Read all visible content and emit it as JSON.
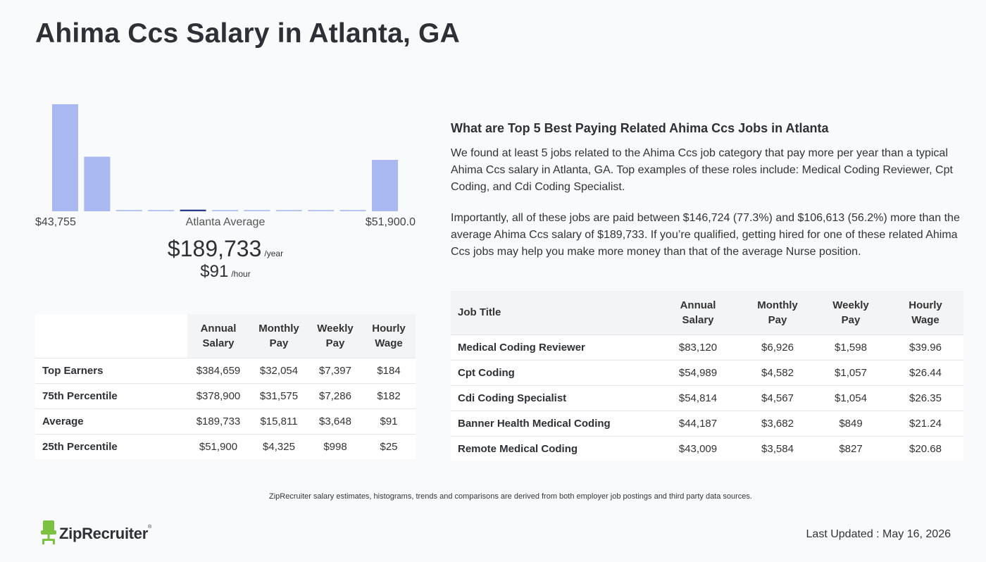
{
  "page": {
    "title": "Ahima Ccs Salary in Atlanta, GA"
  },
  "chart_data": {
    "type": "bar",
    "title": "",
    "xlabel": "",
    "ylabel": "",
    "min_label": "$43,755",
    "center_label": "Atlanta Average",
    "max_label": "$51,900.0",
    "values": [
      100,
      51,
      1,
      1,
      1.5,
      1,
      1,
      1,
      1,
      1,
      48
    ],
    "highlight_index": 4,
    "colors": {
      "bar": "#aab8f2",
      "highlight": "#2b3a8a",
      "flat": "#b8c4f0"
    }
  },
  "average": {
    "yearly": "$189,733",
    "yearly_unit": "/year",
    "hourly": "$91",
    "hourly_unit": "/hour"
  },
  "percentile_table": {
    "headers": [
      "Annual Salary",
      "Monthly Pay",
      "Weekly Pay",
      "Hourly Wage"
    ],
    "rows": [
      {
        "label": "Top Earners",
        "values": [
          "$384,659",
          "$32,054",
          "$7,397",
          "$184"
        ]
      },
      {
        "label": "75th Percentile",
        "values": [
          "$378,900",
          "$31,575",
          "$7,286",
          "$182"
        ]
      },
      {
        "label": "Average",
        "values": [
          "$189,733",
          "$15,811",
          "$3,648",
          "$91"
        ]
      },
      {
        "label": "25th Percentile",
        "values": [
          "$51,900",
          "$4,325",
          "$998",
          "$25"
        ]
      }
    ]
  },
  "related": {
    "heading": "What are Top 5 Best Paying Related Ahima Ccs Jobs in Atlanta",
    "para1": "We found at least 5 jobs related to the Ahima Ccs job category that pay more per year than a typical Ahima Ccs salary in Atlanta, GA. Top examples of these roles include: Medical Coding Reviewer, Cpt Coding, and Cdi Coding Specialist.",
    "para2": "Importantly, all of these jobs are paid between $146,724 (77.3%) and $106,613 (56.2%) more than the average Ahima Ccs salary of $189,733. If you’re qualified, getting hired for one of these related Ahima Ccs jobs may help you make more money than that of the average Nurse position."
  },
  "jobs_table": {
    "headers": [
      "Job Title",
      "Annual Salary",
      "Monthly Pay",
      "Weekly Pay",
      "Hourly Wage"
    ],
    "rows": [
      {
        "title": "Medical Coding Reviewer",
        "values": [
          "$83,120",
          "$6,926",
          "$1,598",
          "$39.96"
        ]
      },
      {
        "title": "Cpt Coding",
        "values": [
          "$54,989",
          "$4,582",
          "$1,057",
          "$26.44"
        ]
      },
      {
        "title": "Cdi Coding Specialist",
        "values": [
          "$54,814",
          "$4,567",
          "$1,054",
          "$26.35"
        ]
      },
      {
        "title": "Banner Health Medical Coding",
        "values": [
          "$44,187",
          "$3,682",
          "$849",
          "$21.24"
        ]
      },
      {
        "title": "Remote Medical Coding",
        "values": [
          "$43,009",
          "$3,584",
          "$827",
          "$20.68"
        ]
      }
    ]
  },
  "footer": {
    "disclaimer": "ZipRecruiter salary estimates, histograms, trends and comparisons are derived from both employer job postings and third party data sources.",
    "logo_text": "ZipRecruiter",
    "logo_mark": "®",
    "updated": "Last Updated : May 16, 2026"
  }
}
